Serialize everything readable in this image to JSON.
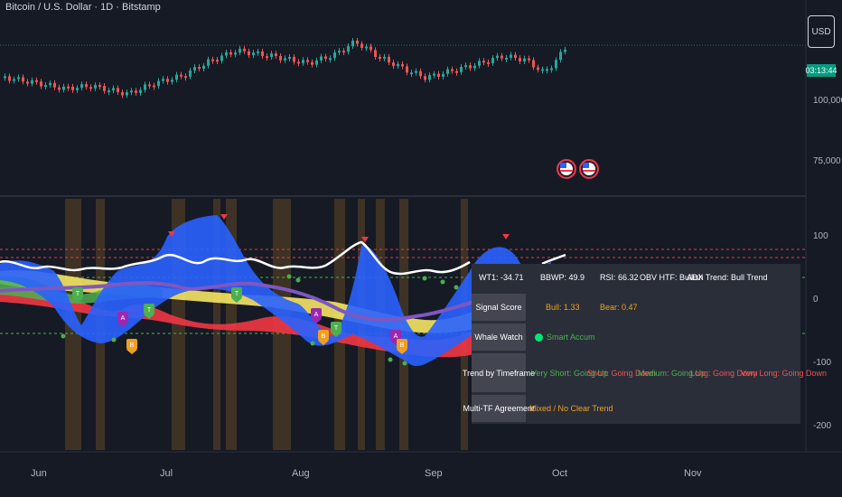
{
  "header": {
    "title": "Bitcoin / U.S. Dollar · 1D · Bitstamp",
    "currency": "USD",
    "countdown": "03:13:44"
  },
  "price_axis": {
    "labels": [
      "100,000",
      "75,000"
    ]
  },
  "indicator_axis": {
    "labels": [
      "100",
      "0",
      "-100",
      "-200"
    ]
  },
  "time_axis": {
    "labels": [
      "Jun",
      "Jul",
      "Aug",
      "Sep",
      "Oct",
      "Nov"
    ]
  },
  "panel": {
    "header": {
      "wt1": "WT1: -34.71",
      "bbwp": "BBWP: 49.9",
      "rsi": "RSI: 66.32",
      "obv": "OBV HTF: Bullish",
      "adx": "ADX Trend: Bull Trend"
    },
    "signal_score": {
      "label": "Signal Score",
      "bull": "Bull: 1.33",
      "bear": "Bear: 0.47"
    },
    "whale_watch": {
      "label": "Whale Watch",
      "value": "Smart Accum"
    },
    "trend": {
      "label": "Trend by Timeframe",
      "items": [
        {
          "text": "Very Short: Going Up",
          "color": "#4caf50"
        },
        {
          "text": "Short: Going Down",
          "color": "#ef5350"
        },
        {
          "text": "Medium: Going Up",
          "color": "#4caf50"
        },
        {
          "text": "Long: Going Down",
          "color": "#ef5350"
        },
        {
          "text": "Very Long: Going Down",
          "color": "#ef5350"
        }
      ]
    },
    "multi_tf": {
      "label": "Multi-TF Agreement",
      "value": "Mixed / No Clear Trend"
    }
  },
  "colors": {
    "bg": "#161a25",
    "up": "#26a69a",
    "down": "#ef5350",
    "wave_blue": "#2962ff",
    "wave_red": "#f23645",
    "wave_yellow": "#f5e663",
    "purple": "#7e57c2",
    "highlight": "#f0a020"
  }
}
